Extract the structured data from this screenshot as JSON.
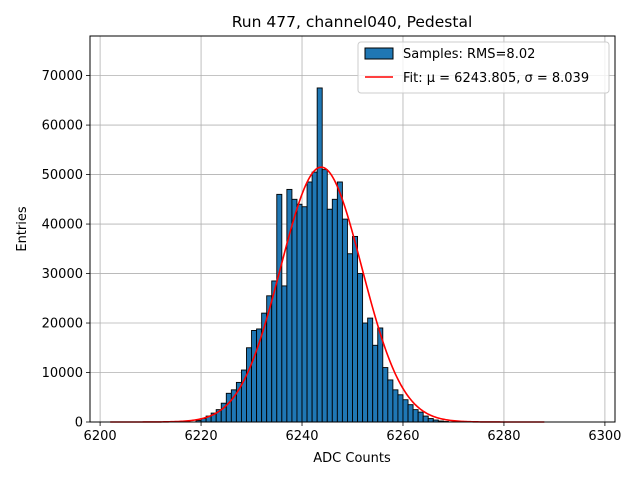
{
  "chart_data": {
    "type": "bar",
    "title": "Run 477, channel040, Pedestal",
    "xlabel": "ADC Counts",
    "ylabel": "Entries",
    "xlim": [
      6198,
      6302
    ],
    "ylim": [
      0,
      78000
    ],
    "grid": true,
    "legend_position": "top-right",
    "xticks": [
      6200,
      6220,
      6240,
      6260,
      6280,
      6300
    ],
    "yticks": [
      0,
      10000,
      20000,
      30000,
      40000,
      50000,
      60000,
      70000
    ],
    "xtick_labels": [
      "6200",
      "6220",
      "6240",
      "6260",
      "6280",
      "6300"
    ],
    "ytick_labels": [
      "0",
      "10000",
      "20000",
      "30000",
      "40000",
      "50000",
      "60000",
      "70000"
    ],
    "histogram": {
      "name": "Samples: RMS=8.02",
      "bin_width": 1,
      "bins_start": [
        6219,
        6220,
        6221,
        6222,
        6223,
        6224,
        6225,
        6226,
        6227,
        6228,
        6229,
        6230,
        6231,
        6232,
        6233,
        6234,
        6235,
        6236,
        6237,
        6238,
        6239,
        6240,
        6241,
        6242,
        6243,
        6244,
        6245,
        6246,
        6247,
        6248,
        6249,
        6250,
        6251,
        6252,
        6253,
        6254,
        6255,
        6256,
        6257,
        6258,
        6259,
        6260,
        6261,
        6262,
        6263,
        6264,
        6265,
        6266,
        6267,
        6268
      ],
      "values": [
        300,
        700,
        1200,
        1800,
        2500,
        3800,
        5800,
        6500,
        8000,
        10500,
        15000,
        18500,
        18800,
        22000,
        25500,
        28500,
        46000,
        27500,
        47000,
        45000,
        44000,
        43500,
        48500,
        50500,
        67500,
        51000,
        43000,
        45000,
        48500,
        41000,
        34000,
        37500,
        30000,
        20000,
        21000,
        15500,
        19000,
        11000,
        8500,
        6500,
        5500,
        4500,
        3500,
        2500,
        2000,
        1200,
        700,
        400,
        200,
        100
      ],
      "color": "#1f77b4",
      "edgecolor": "#000000"
    },
    "fit": {
      "name": "Fit: μ = 6243.805, σ = 8.039",
      "type": "gaussian",
      "mu": 6243.805,
      "sigma": 8.039,
      "amplitude": 51500,
      "x_range": [
        6202,
        6288
      ],
      "color": "#ff0000"
    }
  }
}
